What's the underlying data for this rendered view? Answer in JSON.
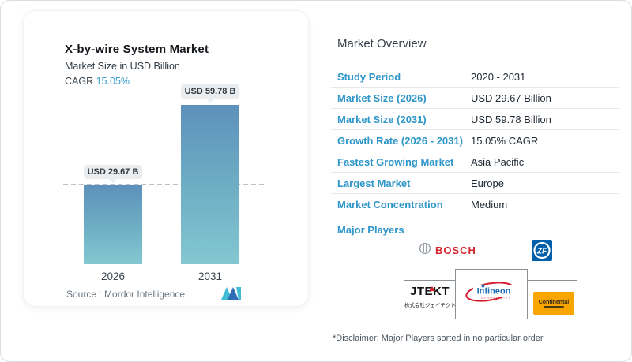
{
  "chart_data": {
    "type": "bar",
    "title": "X-by-wire System Market",
    "subtitle": "Market Size in USD Billion",
    "cagr_label": "CAGR",
    "cagr_value": "15.05%",
    "categories": [
      "2026",
      "2031"
    ],
    "values": [
      29.67,
      59.78
    ],
    "bar_labels": [
      "USD 29.67 B",
      "USD 59.78 B"
    ],
    "ylim": [
      0,
      62
    ],
    "grid": "off",
    "legend": "none",
    "annotations": "dashed horizontal reference line at 2026 value (29.67)",
    "source_label": "Source :  Mordor Intelligence"
  },
  "colors": {
    "accent_blue": "#2e96c8",
    "cagr_blue": "#3ba0cf",
    "bar_gradient_top": "#5d91ba",
    "bar_gradient_bottom": "#83c7d1",
    "tooltip_bg": "#e9edf0",
    "dashed_line": "#b9c2c9",
    "divider": "#e6e9ec",
    "bosch_red": "#d5232e",
    "zf_blue": "#005faa",
    "continental_orange": "#f9a602",
    "infineon_blue": "#1f6cb5",
    "infineon_red": "#d61a2e"
  },
  "overview": {
    "title": "Market Overview",
    "rows": [
      {
        "label": "Study Period",
        "value": "2020 - 2031"
      },
      {
        "label": "Market Size (2026)",
        "value": "USD 29.67 Billion"
      },
      {
        "label": "Market Size (2031)",
        "value": "USD 59.78 Billion"
      },
      {
        "label": "Growth Rate (2026 - 2031)",
        "value": "15.05% CAGR"
      },
      {
        "label": "Fastest Growing Market",
        "value": "Asia Pacific"
      },
      {
        "label": "Largest Market",
        "value": "Europe"
      },
      {
        "label": "Market Concentration",
        "value": "Medium"
      }
    ],
    "major_players_label": "Major Players",
    "major_players": [
      "Bosch",
      "ZF",
      "JTEKT",
      "Infineon Technologies",
      "Continental"
    ],
    "disclaimer": "*Disclaimer: Major Players sorted in no particular order"
  },
  "logos": {
    "bosch_text": "BOSCH",
    "zf_text": "ZF",
    "jtekt_text": "JTEKT",
    "jtekt_sub": "株式会社ジェイテクト",
    "infineon_text": "Infineon",
    "infineon_sub": "technologies",
    "continental_text": "Continental",
    "mordor_logo_name": "mordor-intelligence-m-logo"
  }
}
